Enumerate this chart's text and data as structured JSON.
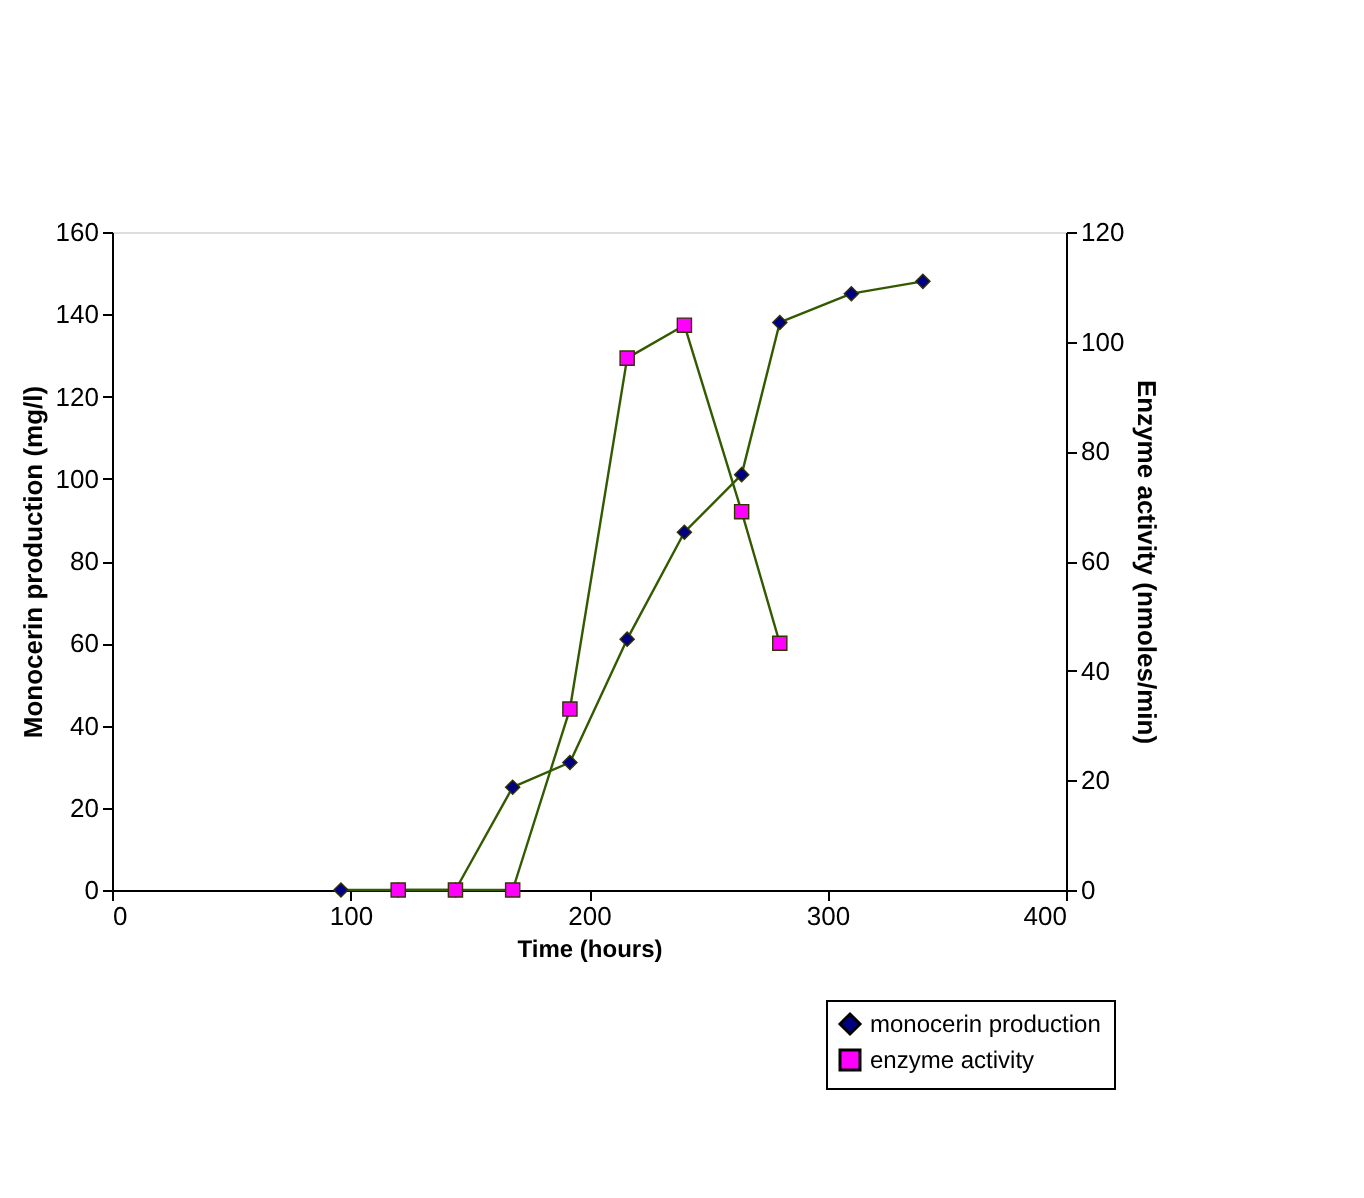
{
  "chart_data": {
    "type": "line",
    "xlabel": "Time (hours)",
    "ylabel": "Monocerin production (mg/l)",
    "y2label": "Enzyme activity (nmoles/min)",
    "xlim": [
      0,
      400
    ],
    "xticks": [
      0,
      100,
      200,
      300,
      400
    ],
    "ylim": [
      0,
      160
    ],
    "yticks": [
      0,
      20,
      40,
      60,
      80,
      100,
      120,
      140,
      160
    ],
    "y2lim": [
      0,
      120
    ],
    "y2ticks": [
      0,
      20,
      40,
      60,
      80,
      100,
      120
    ],
    "series": [
      {
        "name": "monocerin production",
        "color": "#000080",
        "marker": "diamond",
        "x": [
          96,
          120,
          144,
          168,
          192,
          216,
          240,
          264,
          280,
          310,
          340
        ],
        "values": [
          0,
          0,
          0,
          25,
          31,
          61,
          87,
          101,
          138,
          145,
          148
        ]
      },
      {
        "name": "enzyme activity",
        "color": "#ff00ff",
        "marker": "square",
        "axis": "y2",
        "x": [
          120,
          144,
          168,
          192,
          216,
          240,
          264,
          280
        ],
        "values": [
          0,
          0,
          0,
          33,
          97,
          103,
          69,
          45
        ]
      }
    ],
    "legend": "bottom right",
    "grid": false
  }
}
